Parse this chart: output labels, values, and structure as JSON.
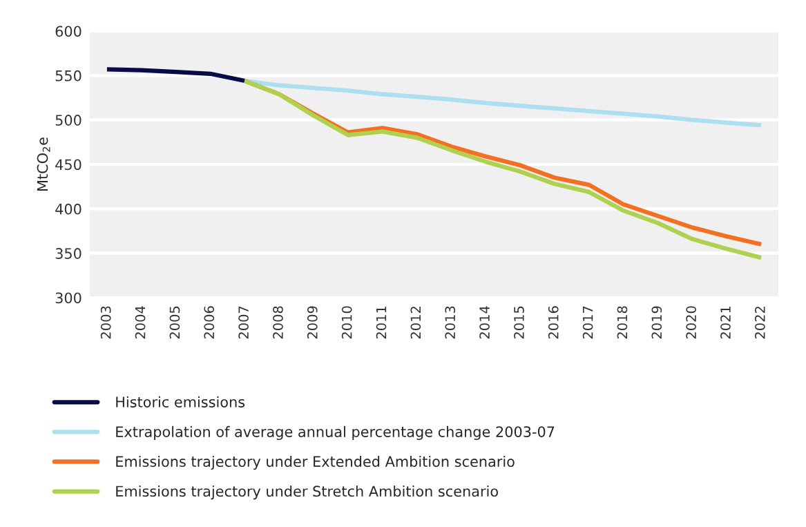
{
  "chart_data": {
    "type": "line",
    "ylabel": "MtCO$_{2}$e",
    "categories": [
      "2003",
      "2004",
      "2005",
      "2006",
      "2007",
      "2008",
      "2009",
      "2010",
      "2011",
      "2012",
      "2013",
      "2014",
      "2015",
      "2016",
      "2017",
      "2018",
      "2019",
      "2020",
      "2021",
      "2022"
    ],
    "series": [
      {
        "name": "Historic emissions",
        "color": "#0a0a4a",
        "values": [
          557,
          556,
          554,
          552,
          544,
          null,
          null,
          null,
          null,
          null,
          null,
          null,
          null,
          null,
          null,
          null,
          null,
          null,
          null,
          null
        ]
      },
      {
        "name": "Extrapolation of average annual percentage change 2003-07",
        "color": "#addff0",
        "values": [
          null,
          null,
          null,
          null,
          544,
          539,
          536,
          533,
          529,
          526,
          523,
          519,
          516,
          513,
          510,
          507,
          504,
          500,
          497,
          494
        ]
      },
      {
        "name": "Emissions trajectory under Extended Ambition scenario",
        "color": "#f36f21",
        "values": [
          null,
          null,
          null,
          null,
          544,
          529,
          507,
          486,
          491,
          484,
          470,
          459,
          449,
          435,
          427,
          405,
          392,
          379,
          369,
          360
        ]
      },
      {
        "name": "Emissions trajectory under Stretch Ambition scenario",
        "color": "#afd14f",
        "values": [
          null,
          null,
          null,
          null,
          544,
          529,
          505,
          483,
          487,
          480,
          466,
          453,
          442,
          428,
          419,
          398,
          384,
          366,
          355,
          345
        ]
      }
    ],
    "ylim": [
      300,
      600
    ],
    "yticks": [
      300,
      350,
      400,
      450,
      500,
      550,
      600
    ],
    "grid": "y",
    "legend": "bottom",
    "line_style": "solid",
    "marker": "none"
  }
}
